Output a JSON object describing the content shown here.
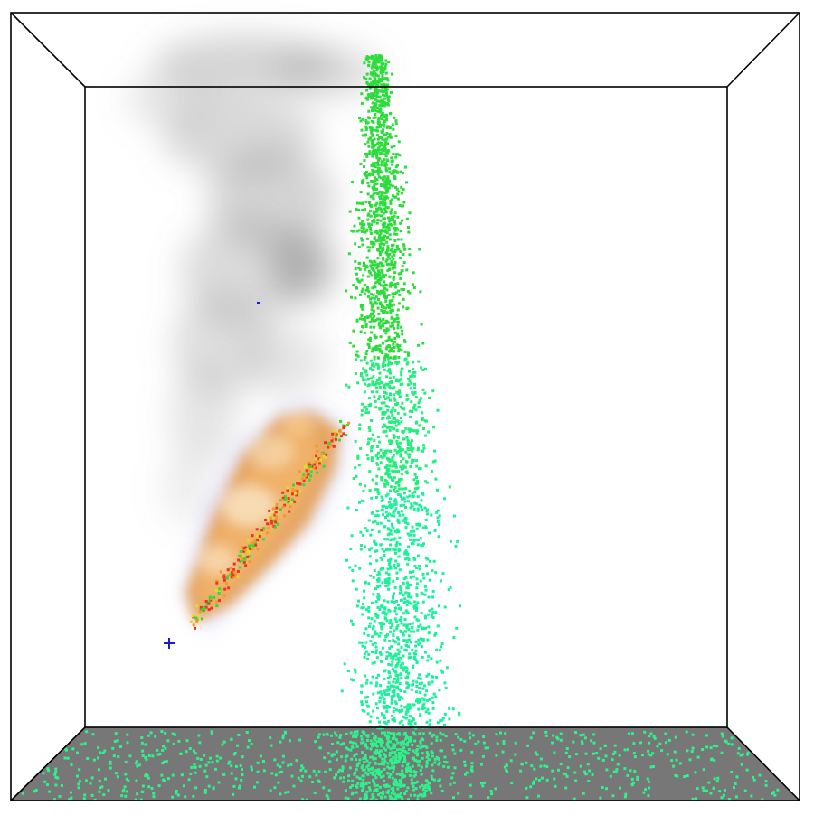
{
  "viewport": {
    "background_color": "#ffffff",
    "edge_color": "#000000",
    "floor_color": "#777777"
  },
  "smoke": {
    "color": "#888888"
  },
  "flame": {
    "inner_color": "#f9e3bf",
    "mid_color": "#f2b36b",
    "outer_color": "#e59a45",
    "halo_color": "#b9b6ee"
  },
  "particles": {
    "color_top": "#2ddc3c",
    "color_mid": "#22ee7c",
    "color_bottom": "#1cf09a",
    "color_hot": "#ee3322",
    "color_warm": "#f09a22",
    "color_yellow": "#dddd22",
    "floor_particle_color": "#2ef28a"
  },
  "emitter": {
    "marker_icon": "crosshair-icon",
    "marker_color": "#1a1adb"
  }
}
